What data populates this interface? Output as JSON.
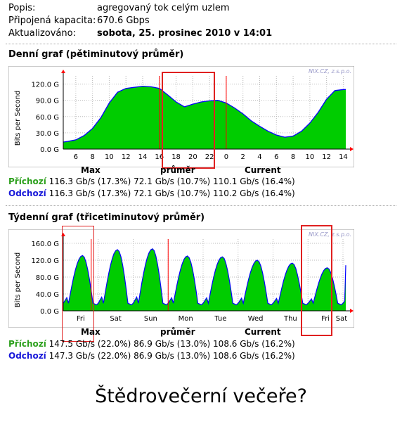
{
  "meta": {
    "description_label": "Popis:",
    "description_value": "agregovaný tok celým uzlem",
    "capacity_label": "Připojená kapacita:",
    "capacity_value": "670.6 Gbps",
    "updated_label": "Aktualizováno:",
    "updated_value": "sobota, 25. prosinec 2010 v 14:01"
  },
  "daily": {
    "title": "Denní graf (pětiminutový průměr)",
    "watermark": "NIX.CZ, z.s.p.o.",
    "ylabel": "Bits per Second",
    "headers": {
      "max": "Max",
      "avg": "průměr",
      "current": "Current"
    },
    "incoming": {
      "label": "Příchozí",
      "max": "116.3 Gb/s (17.3%)",
      "avg": "72.1 Gb/s (10.7%)",
      "current": "110.1 Gb/s (16.4%)"
    },
    "outgoing": {
      "label": "Odchozí",
      "max": "116.3 Gb/s (17.3%)",
      "avg": "72.1 Gb/s (10.7%)",
      "current": "110.2 Gb/s (16.4%)"
    }
  },
  "weekly": {
    "title": "Týdenní graf (třicetiminutový průměr)",
    "watermark": "NIX.CZ, z.s.p.o.",
    "ylabel": "Bits per Second",
    "headers": {
      "max": "Max",
      "avg": "průměr",
      "current": "Current"
    },
    "incoming": {
      "label": "Příchozí",
      "max": "147.5 Gb/s (22.0%)",
      "avg": "86.9 Gb/s (13.0%)",
      "current": "108.6 Gb/s (16.2%)"
    },
    "outgoing": {
      "label": "Odchozí",
      "max": "147.3 Gb/s (22.0%)",
      "avg": "86.9 Gb/s (13.0%)",
      "current": "108.6 Gb/s (16.2%)"
    }
  },
  "caption": "Štědrovečerní večeře?",
  "colors": {
    "incoming_fill": "#00cc00",
    "outgoing_line": "#0000ff",
    "highlight": "#e02020",
    "divider": "#ff0000"
  },
  "chart_data": [
    {
      "type": "area",
      "id": "daily",
      "x_ticks": [
        "6",
        "8",
        "10",
        "12",
        "14",
        "16",
        "18",
        "20",
        "22",
        "0",
        "2",
        "4",
        "6",
        "8",
        "10",
        "12",
        "14"
      ],
      "y_ticks": [
        "0.0 G",
        "30.0 G",
        "60.0 G",
        "90.0 G",
        "120.0 G"
      ],
      "ylim": [
        0,
        135
      ],
      "unit": "Gb/s",
      "x_range_hours": [
        4.5,
        38.3
      ],
      "day_divider_hours": [
        24
      ],
      "extra_divider_hours": [
        16
      ],
      "series": [
        {
          "name": "Příchozí",
          "points": [
            [
              4.5,
              13
            ],
            [
              5,
              14
            ],
            [
              6,
              17
            ],
            [
              7,
              25
            ],
            [
              8,
              38
            ],
            [
              9,
              58
            ],
            [
              10,
              85
            ],
            [
              11,
              105
            ],
            [
              12,
              112
            ],
            [
              13,
              114
            ],
            [
              14,
              116
            ],
            [
              15,
              115
            ],
            [
              16,
              112
            ],
            [
              17,
              100
            ],
            [
              18,
              87
            ],
            [
              19,
              78
            ],
            [
              20,
              83
            ],
            [
              21,
              87
            ],
            [
              22,
              89
            ],
            [
              23,
              90
            ],
            [
              24,
              85
            ],
            [
              25,
              76
            ],
            [
              26,
              65
            ],
            [
              27,
              52
            ],
            [
              28,
              42
            ],
            [
              29,
              33
            ],
            [
              30,
              26
            ],
            [
              31,
              22
            ],
            [
              32,
              24
            ],
            [
              33,
              33
            ],
            [
              34,
              48
            ],
            [
              35,
              68
            ],
            [
              36,
              92
            ],
            [
              37,
              108
            ],
            [
              38,
              110
            ],
            [
              38.3,
              110
            ]
          ]
        }
      ]
    },
    {
      "type": "area",
      "id": "weekly",
      "x_ticks": [
        "Fri",
        "Sat",
        "Sun",
        "Mon",
        "Tue",
        "Wed",
        "Thu",
        "Fri",
        "Sat"
      ],
      "y_ticks": [
        "0.0 G",
        "40.0 G",
        "80.0 G",
        "120.0 G",
        "160.0 G"
      ],
      "ylim": [
        0,
        170
      ],
      "unit": "Gb/s",
      "x_range_days": [
        0,
        8.08
      ],
      "divider_days": [
        0.8,
        3.0
      ],
      "daily_peaks": [
        131,
        145,
        147,
        130,
        128,
        120,
        113,
        102,
        114
      ],
      "series": [
        {
          "name": "Příchozí",
          "peaks": [
            131,
            145,
            147,
            130,
            128,
            120,
            113,
            102,
            114
          ]
        }
      ]
    }
  ]
}
